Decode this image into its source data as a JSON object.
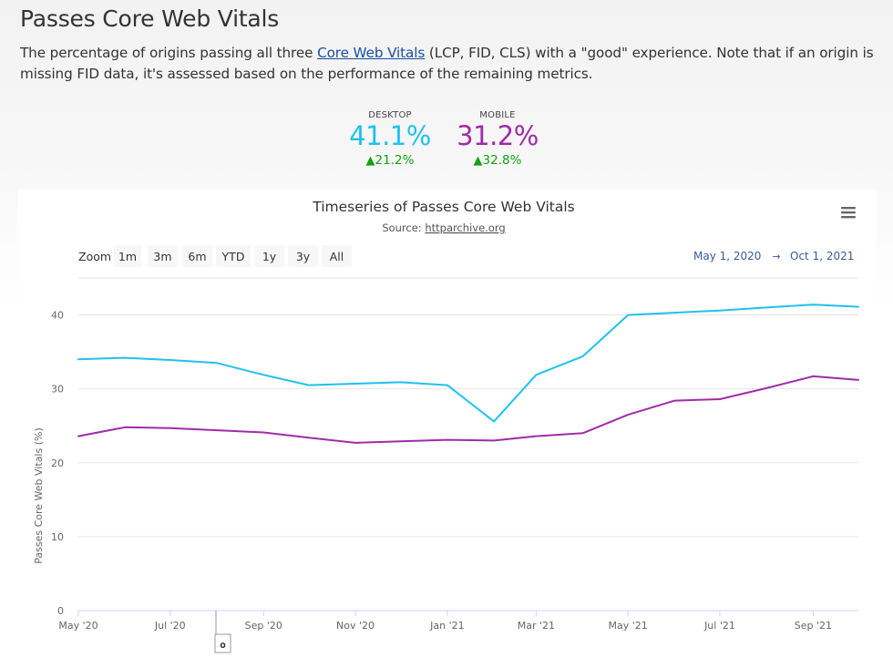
{
  "page": {
    "title": "Passes Core Web Vitals",
    "description_before": "The percentage of origins passing all three ",
    "description_link": "Core Web Vitals",
    "description_after": " (LCP, FID, CLS) with a \"good\" experience. Note that if an origin is missing FID data, it's assessed based on the performance of the remaining metrics."
  },
  "metrics": [
    {
      "label": "DESKTOP",
      "value": "41.1%",
      "change": "21.2%",
      "color": "#1fc1f0"
    },
    {
      "label": "MOBILE",
      "value": "31.2%",
      "change": "32.8%",
      "color": "#a02ba8"
    }
  ],
  "change_color": "#14a014",
  "chart": {
    "menu_icon": "hamburger-menu-icon",
    "zoom_label": "Zoom",
    "zoom_buttons": [
      "1m",
      "3m",
      "6m",
      "YTD",
      "1y",
      "3y",
      "All"
    ],
    "range_from": "May 1, 2020",
    "range_arrow": "→",
    "range_to": "Oct 1, 2021",
    "navigator_handle": "o"
  },
  "chart_data": {
    "type": "line",
    "title": "Timeseries of Passes Core Web Vitals",
    "subtitle_prefix": "Source: ",
    "subtitle_link": "httparchive.org",
    "xlabel": "",
    "ylabel": "Passes Core Web Vitals (%)",
    "ylim": [
      0,
      45
    ],
    "yticks": [
      0,
      10,
      20,
      30,
      40
    ],
    "xticks": [
      "May '20",
      "Jul '20",
      "Sep '20",
      "Nov '20",
      "Jan '21",
      "Mar '21",
      "May '21",
      "Jul '21",
      "Sep '21"
    ],
    "x": [
      "2020-05-01",
      "2020-06-01",
      "2020-07-01",
      "2020-08-01",
      "2020-09-01",
      "2020-10-01",
      "2020-11-01",
      "2020-12-01",
      "2021-01-01",
      "2021-02-01",
      "2021-03-01",
      "2021-04-01",
      "2021-05-01",
      "2021-06-01",
      "2021-07-01",
      "2021-08-01",
      "2021-09-01",
      "2021-10-01"
    ],
    "grid": true,
    "series": [
      {
        "color": "#1fc1f0",
        "values": [
          34.0,
          34.2,
          33.9,
          33.5,
          31.9,
          30.5,
          30.7,
          30.9,
          30.5,
          25.6,
          31.9,
          34.4,
          40.0,
          40.3,
          40.6,
          41.0,
          41.4,
          41.1
        ]
      },
      {
        "color": "#a02ba8",
        "values": [
          23.6,
          24.8,
          24.7,
          24.4,
          24.1,
          23.4,
          22.7,
          22.9,
          23.1,
          23.0,
          23.6,
          24.0,
          26.5,
          28.4,
          28.6,
          30.1,
          31.7,
          31.2
        ]
      }
    ]
  }
}
